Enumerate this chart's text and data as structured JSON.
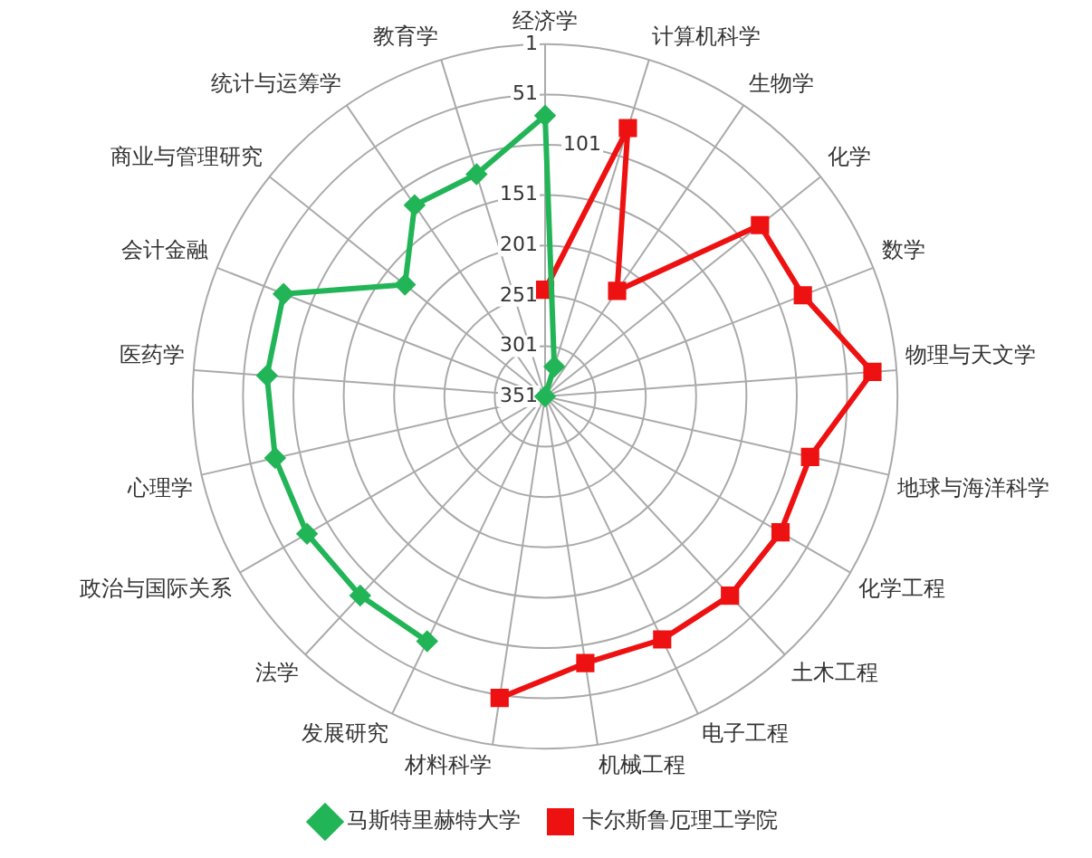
{
  "chart_data": {
    "type": "radar",
    "categories": [
      "经济学",
      "计算机科学",
      "生物学",
      "化学",
      "数学",
      "物理与天文学",
      "地球与海洋科学",
      "化学工程",
      "土木工程",
      "电子工程",
      "机械工程",
      "材料科学",
      "发展研究",
      "法学",
      "政治与国际关系",
      "心理学",
      "医药学",
      "会计金融",
      "商业与管理研究",
      "统计与运筹学",
      "教育学"
    ],
    "series": [
      {
        "name": "马斯特里赫特大学",
        "color": "#22b557",
        "marker": "diamond",
        "values": [
          72,
          320,
          351,
          null,
          null,
          null,
          null,
          null,
          null,
          null,
          null,
          null,
          81,
          81,
          78,
          76,
          74,
          72,
          173,
          121,
          120
        ]
      },
      {
        "name": "卡尔斯鲁厄理工学院",
        "color": "#ee1111",
        "marker": "square",
        "values": [
          245,
          72,
          224,
          78,
          76,
          25,
          81,
          81,
          81,
          83,
          83,
          48,
          null,
          null,
          null,
          null,
          null,
          null,
          null,
          null,
          null
        ]
      }
    ],
    "ylim": [
      351,
      1
    ],
    "yticks": [
      1,
      51,
      101,
      151,
      201,
      251,
      301,
      351
    ],
    "grid": true,
    "legend": "bottom"
  }
}
